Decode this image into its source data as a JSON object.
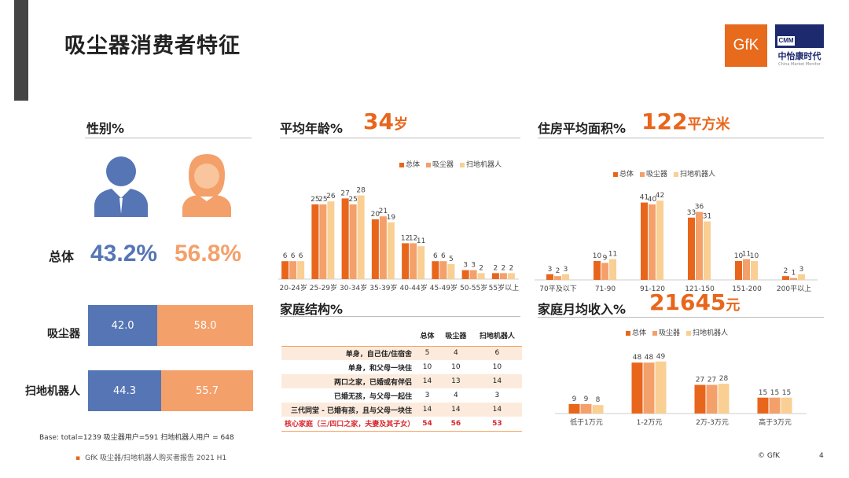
{
  "page": {
    "title": "吸尘器消费者特征",
    "page_number": "4",
    "copyright": "© GfK"
  },
  "logos": {
    "gfk": "GfK",
    "cmm_box": "CMM",
    "cmm_cn": "中怡康时代",
    "cmm_en": "China Market Monitor"
  },
  "colors": {
    "s1": "#e8661c",
    "s2": "#f4a06a",
    "s3": "#f9cf93",
    "male": "#5575b5",
    "female": "#f4a06a"
  },
  "legend": [
    "总体",
    "吸尘器",
    "扫地机器人"
  ],
  "gender": {
    "title": "性别%",
    "row_label": "总体",
    "male_pct": "43.2%",
    "female_pct": "56.8%",
    "rows": [
      {
        "label": "吸尘器",
        "male": "42.0",
        "female": "58.0",
        "male_value": 42.0,
        "female_value": 58.0
      },
      {
        "label": "扫地机器人",
        "male": "44.3",
        "female": "55.7",
        "male_value": 44.3,
        "female_value": 55.7
      }
    ]
  },
  "age": {
    "title": "平均年龄%",
    "value": "34",
    "unit": "岁"
  },
  "housing": {
    "title": "住房平均面积%",
    "value": "122",
    "unit": "平方米"
  },
  "family": {
    "title": "家庭结构%",
    "headers": [
      "总体",
      "吸尘器",
      "扫地机器人"
    ],
    "rows": [
      {
        "label": "单身，自己住/住宿舍",
        "v": [
          "5",
          "4",
          "6"
        ]
      },
      {
        "label": "单身，和父母一块住",
        "v": [
          "10",
          "10",
          "10"
        ]
      },
      {
        "label": "两口之家，已婚或有伴侣",
        "v": [
          "14",
          "13",
          "14"
        ]
      },
      {
        "label": "已婚无孩，与父母一起住",
        "v": [
          "3",
          "4",
          "3"
        ]
      },
      {
        "label": "三代同堂 - 已婚有孩，且与父母一块住",
        "v": [
          "14",
          "14",
          "14"
        ]
      },
      {
        "label": "核心家庭（三/四口之家，夫妻及其子女）",
        "v": [
          "54",
          "56",
          "53"
        ]
      }
    ]
  },
  "income": {
    "title": "家庭月均收入%",
    "value": "21645",
    "unit": "元"
  },
  "footer": {
    "base": "Base:  total=1239   吸尘器用户=591 扫地机器人用户 = 648",
    "source": "GfK 吸尘器/扫地机器人购买者报告 2021 H1"
  },
  "chart_data": [
    {
      "type": "bar",
      "name": "age",
      "categories": [
        "20-24岁",
        "25-29岁",
        "30-34岁",
        "35-39岁",
        "40-44岁",
        "45-49岁",
        "50-55岁",
        "55岁以上"
      ],
      "series": [
        {
          "name": "总体",
          "values": [
            6,
            25,
            27,
            20,
            12,
            6,
            3,
            2
          ]
        },
        {
          "name": "吸尘器",
          "values": [
            6,
            25,
            25,
            21,
            12,
            6,
            3,
            2
          ]
        },
        {
          "name": "扫地机器人",
          "values": [
            6,
            26,
            28,
            19,
            11,
            5,
            2,
            2
          ]
        }
      ]
    },
    {
      "type": "bar",
      "name": "housing",
      "categories": [
        "70平及以下",
        "71-90",
        "91-120",
        "121-150",
        "151-200",
        "200平以上"
      ],
      "series": [
        {
          "name": "总体",
          "values": [
            3,
            10,
            41,
            33,
            10,
            2
          ]
        },
        {
          "name": "吸尘器",
          "values": [
            2,
            9,
            40,
            36,
            11,
            1
          ]
        },
        {
          "name": "扫地机器人",
          "values": [
            3,
            11,
            42,
            31,
            10,
            3
          ]
        }
      ]
    },
    {
      "type": "bar",
      "name": "income",
      "categories": [
        "低于1万元",
        "1-2万元",
        "2万-3万元",
        "高于3万元"
      ],
      "series": [
        {
          "name": "总体",
          "values": [
            9,
            48,
            27,
            15
          ]
        },
        {
          "name": "吸尘器",
          "values": [
            9,
            48,
            27,
            15
          ]
        },
        {
          "name": "扫地机器人",
          "values": [
            8,
            49,
            28,
            15
          ]
        }
      ]
    }
  ]
}
